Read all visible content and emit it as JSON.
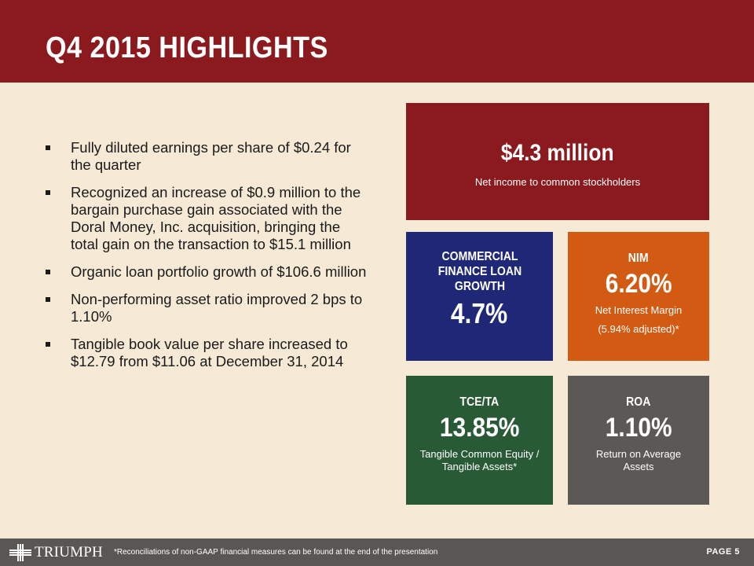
{
  "header": {
    "title": "Q4 2015 HIGHLIGHTS"
  },
  "bullets": [
    {
      "text": "Fully diluted earnings per share of $0.24 for the quarter"
    },
    {
      "text": "Recognized an increase of $0.9 million to the bargain purchase gain associated with the Doral Money, Inc. acquisition, bringing the total gain on the transaction to $15.1 million"
    },
    {
      "text": "Organic loan portfolio growth of $106.6 million"
    },
    {
      "text": "Non-performing asset ratio improved 2 bps to 1.10%"
    },
    {
      "text": "Tangible book value per share increased to $12.79 from $11.06 at December 31, 2014"
    }
  ],
  "metrics": {
    "net_income": {
      "value": "$4.3 million",
      "label": "Net income to common stockholders"
    },
    "commercial_finance": {
      "heading": "COMMERCIAL FINANCE LOAN GROWTH",
      "value": "4.7%"
    },
    "nim": {
      "heading": "NIM",
      "value": "6.20%",
      "label": "Net Interest Margin",
      "adjusted": "(5.94% adjusted)*"
    },
    "tce_ta": {
      "heading": "TCE/TA",
      "value": "13.85%",
      "label": "Tangible Common Equity / Tangible Assets*"
    },
    "roa": {
      "heading": "ROA",
      "value": "1.10%",
      "label": "Return on Average Assets"
    }
  },
  "footer": {
    "logo_text": "TRIUMPH",
    "footnote": "*Reconciliations of non-GAAP financial measures can be found at the end of the presentation",
    "page_label": "PAGE 5"
  },
  "colors": {
    "header": "#8b1a1f",
    "background": "#f6ead7",
    "navy": "#1e2876",
    "orange": "#d35a12",
    "green": "#285a36",
    "gray": "#5b5856"
  }
}
